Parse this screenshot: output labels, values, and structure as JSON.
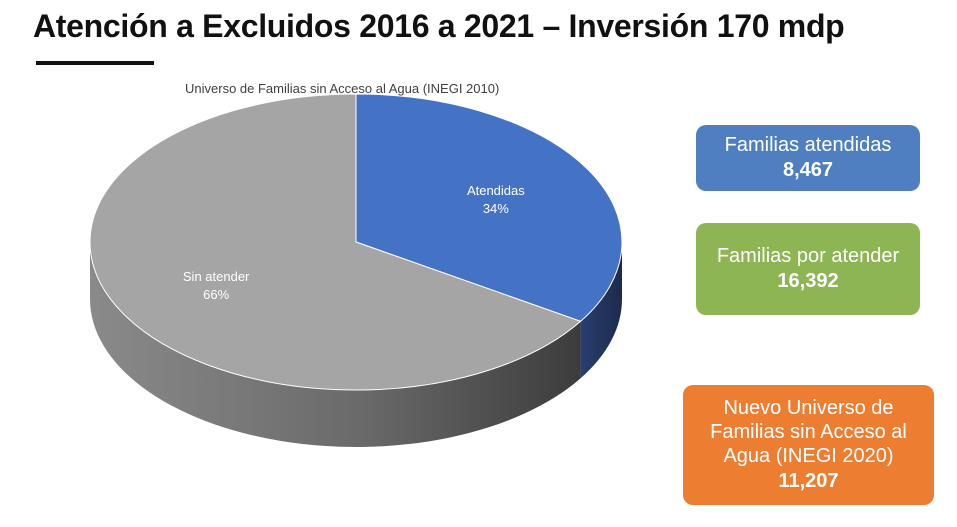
{
  "title": "Atención a Excluidos 2016 a 2021 – Inversión 170 mdp",
  "chart_data": {
    "type": "pie",
    "title": "Universo de Familias sin Acceso al Agua (INEGI 2010)",
    "slices": [
      {
        "label": "Atendidas",
        "percent_label": "34%",
        "value": 34,
        "color": "#4472C4"
      },
      {
        "label": "Sin atender",
        "percent_label": "66%",
        "value": 66,
        "color": "#A5A5A5"
      }
    ],
    "style": "3d"
  },
  "boxes": {
    "attended": {
      "label": "Familias atendidas",
      "value": "8,467",
      "color": "#4F7FC0"
    },
    "pending": {
      "label": "Familias por atender",
      "value": "16,392",
      "color": "#8DB553"
    },
    "universe": {
      "label_lines": [
        "Nuevo Universo de",
        "Familias sin Acceso al",
        "Agua (INEGI 2020)"
      ],
      "value": "11,207",
      "color": "#ED7D31"
    }
  }
}
